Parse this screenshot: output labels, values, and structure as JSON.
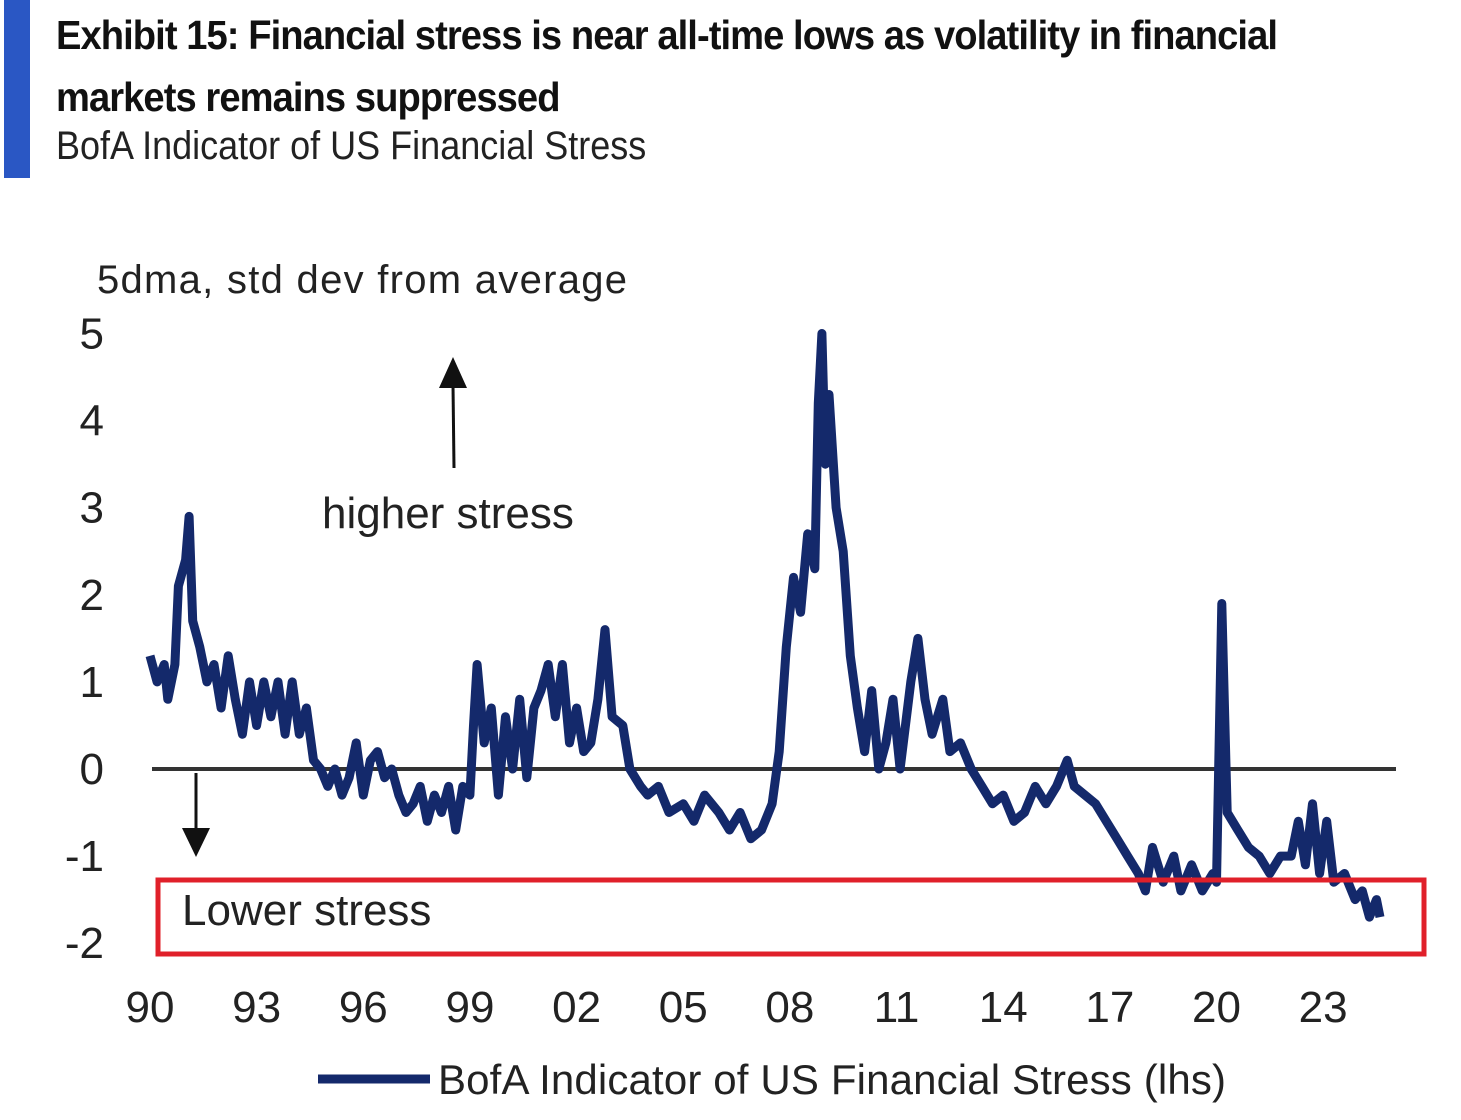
{
  "header": {
    "title": "Exhibit 15: Financial stress is near all-time lows as volatility in financial markets remains suppressed",
    "subtitle": "BofA Indicator of US Financial Stress"
  },
  "chart_data": {
    "type": "line",
    "title": "Exhibit 15: Financial stress is near all-time lows as volatility in financial markets remains suppressed",
    "subtitle": "BofA Indicator of US Financial Stress",
    "ylabel": "5dma, std dev from average",
    "xlabel": "",
    "ylim": [
      -2,
      5
    ],
    "xlim": [
      1990,
      2025
    ],
    "yticks": [
      "5",
      "4",
      "3",
      "2",
      "1",
      "0",
      "-1",
      "-2"
    ],
    "xticks": [
      "90",
      "93",
      "96",
      "99",
      "02",
      "05",
      "08",
      "11",
      "14",
      "17",
      "20",
      "23"
    ],
    "annotations": {
      "up": "higher stress",
      "down": "Lower stress"
    },
    "colors": {
      "series": "#14296b",
      "highlight": "#e0202a",
      "zero_line": "#333333"
    },
    "legend": {
      "position": "bottom",
      "label": "BofA Indicator of US Financial Stress (lhs)"
    },
    "series": [
      {
        "name": "BofA Indicator of US Financial Stress (lhs)",
        "points": [
          [
            1990.0,
            1.3
          ],
          [
            1990.2,
            1.0
          ],
          [
            1990.4,
            1.2
          ],
          [
            1990.5,
            0.8
          ],
          [
            1990.7,
            1.2
          ],
          [
            1990.8,
            2.1
          ],
          [
            1991.0,
            2.4
          ],
          [
            1991.1,
            2.9
          ],
          [
            1991.2,
            1.7
          ],
          [
            1991.4,
            1.4
          ],
          [
            1991.6,
            1.0
          ],
          [
            1991.8,
            1.2
          ],
          [
            1992.0,
            0.7
          ],
          [
            1992.2,
            1.3
          ],
          [
            1992.4,
            0.8
          ],
          [
            1992.6,
            0.4
          ],
          [
            1992.8,
            1.0
          ],
          [
            1993.0,
            0.5
          ],
          [
            1993.2,
            1.0
          ],
          [
            1993.4,
            0.6
          ],
          [
            1993.6,
            1.0
          ],
          [
            1993.8,
            0.4
          ],
          [
            1994.0,
            1.0
          ],
          [
            1994.2,
            0.4
          ],
          [
            1994.4,
            0.7
          ],
          [
            1994.6,
            0.1
          ],
          [
            1994.8,
            0.0
          ],
          [
            1995.0,
            -0.2
          ],
          [
            1995.2,
            0.0
          ],
          [
            1995.4,
            -0.3
          ],
          [
            1995.6,
            -0.1
          ],
          [
            1995.8,
            0.3
          ],
          [
            1996.0,
            -0.3
          ],
          [
            1996.2,
            0.1
          ],
          [
            1996.4,
            0.2
          ],
          [
            1996.6,
            -0.1
          ],
          [
            1996.8,
            0.0
          ],
          [
            1997.0,
            -0.3
          ],
          [
            1997.2,
            -0.5
          ],
          [
            1997.4,
            -0.4
          ],
          [
            1997.6,
            -0.2
          ],
          [
            1997.8,
            -0.6
          ],
          [
            1998.0,
            -0.3
          ],
          [
            1998.2,
            -0.5
          ],
          [
            1998.4,
            -0.2
          ],
          [
            1998.6,
            -0.7
          ],
          [
            1998.8,
            -0.2
          ],
          [
            1999.0,
            -0.3
          ],
          [
            1999.1,
            0.5
          ],
          [
            1999.2,
            1.2
          ],
          [
            1999.4,
            0.3
          ],
          [
            1999.6,
            0.7
          ],
          [
            1999.8,
            -0.3
          ],
          [
            2000.0,
            0.6
          ],
          [
            2000.2,
            0.0
          ],
          [
            2000.4,
            0.8
          ],
          [
            2000.6,
            -0.1
          ],
          [
            2000.8,
            0.7
          ],
          [
            2001.0,
            0.9
          ],
          [
            2001.2,
            1.2
          ],
          [
            2001.4,
            0.6
          ],
          [
            2001.6,
            1.2
          ],
          [
            2001.8,
            0.3
          ],
          [
            2002.0,
            0.7
          ],
          [
            2002.2,
            0.2
          ],
          [
            2002.4,
            0.3
          ],
          [
            2002.6,
            0.8
          ],
          [
            2002.8,
            1.6
          ],
          [
            2003.0,
            0.6
          ],
          [
            2003.3,
            0.5
          ],
          [
            2003.5,
            0.0
          ],
          [
            2003.8,
            -0.2
          ],
          [
            2004.0,
            -0.3
          ],
          [
            2004.3,
            -0.2
          ],
          [
            2004.6,
            -0.5
          ],
          [
            2005.0,
            -0.4
          ],
          [
            2005.3,
            -0.6
          ],
          [
            2005.6,
            -0.3
          ],
          [
            2006.0,
            -0.5
          ],
          [
            2006.3,
            -0.7
          ],
          [
            2006.6,
            -0.5
          ],
          [
            2006.9,
            -0.8
          ],
          [
            2007.2,
            -0.7
          ],
          [
            2007.5,
            -0.4
          ],
          [
            2007.7,
            0.2
          ],
          [
            2007.9,
            1.4
          ],
          [
            2008.1,
            2.2
          ],
          [
            2008.3,
            1.8
          ],
          [
            2008.5,
            2.7
          ],
          [
            2008.7,
            2.3
          ],
          [
            2008.8,
            4.2
          ],
          [
            2008.9,
            5.0
          ],
          [
            2009.0,
            3.5
          ],
          [
            2009.1,
            4.3
          ],
          [
            2009.3,
            3.0
          ],
          [
            2009.5,
            2.5
          ],
          [
            2009.7,
            1.3
          ],
          [
            2009.9,
            0.7
          ],
          [
            2010.1,
            0.2
          ],
          [
            2010.3,
            0.9
          ],
          [
            2010.5,
            0.0
          ],
          [
            2010.7,
            0.3
          ],
          [
            2010.9,
            0.8
          ],
          [
            2011.1,
            0.0
          ],
          [
            2011.4,
            1.0
          ],
          [
            2011.6,
            1.5
          ],
          [
            2011.8,
            0.8
          ],
          [
            2012.0,
            0.4
          ],
          [
            2012.3,
            0.8
          ],
          [
            2012.5,
            0.2
          ],
          [
            2012.8,
            0.3
          ],
          [
            2013.1,
            0.0
          ],
          [
            2013.4,
            -0.2
          ],
          [
            2013.7,
            -0.4
          ],
          [
            2014.0,
            -0.3
          ],
          [
            2014.3,
            -0.6
          ],
          [
            2014.6,
            -0.5
          ],
          [
            2014.9,
            -0.2
          ],
          [
            2015.2,
            -0.4
          ],
          [
            2015.5,
            -0.2
          ],
          [
            2015.8,
            0.1
          ],
          [
            2016.0,
            -0.2
          ],
          [
            2016.3,
            -0.3
          ],
          [
            2016.6,
            -0.4
          ],
          [
            2016.9,
            -0.6
          ],
          [
            2017.2,
            -0.8
          ],
          [
            2017.5,
            -1.0
          ],
          [
            2017.8,
            -1.2
          ],
          [
            2018.0,
            -1.4
          ],
          [
            2018.2,
            -0.9
          ],
          [
            2018.5,
            -1.3
          ],
          [
            2018.8,
            -1.0
          ],
          [
            2019.0,
            -1.4
          ],
          [
            2019.3,
            -1.1
          ],
          [
            2019.6,
            -1.4
          ],
          [
            2019.9,
            -1.2
          ],
          [
            2020.0,
            -1.3
          ],
          [
            2020.15,
            1.9
          ],
          [
            2020.3,
            -0.5
          ],
          [
            2020.6,
            -0.7
          ],
          [
            2020.9,
            -0.9
          ],
          [
            2021.2,
            -1.0
          ],
          [
            2021.5,
            -1.2
          ],
          [
            2021.8,
            -1.0
          ],
          [
            2022.1,
            -1.0
          ],
          [
            2022.3,
            -0.6
          ],
          [
            2022.5,
            -1.1
          ],
          [
            2022.7,
            -0.4
          ],
          [
            2022.9,
            -1.2
          ],
          [
            2023.1,
            -0.6
          ],
          [
            2023.3,
            -1.3
          ],
          [
            2023.6,
            -1.2
          ],
          [
            2023.9,
            -1.5
          ],
          [
            2024.1,
            -1.4
          ],
          [
            2024.3,
            -1.7
          ],
          [
            2024.5,
            -1.5
          ],
          [
            2024.6,
            -1.7
          ]
        ]
      }
    ]
  }
}
